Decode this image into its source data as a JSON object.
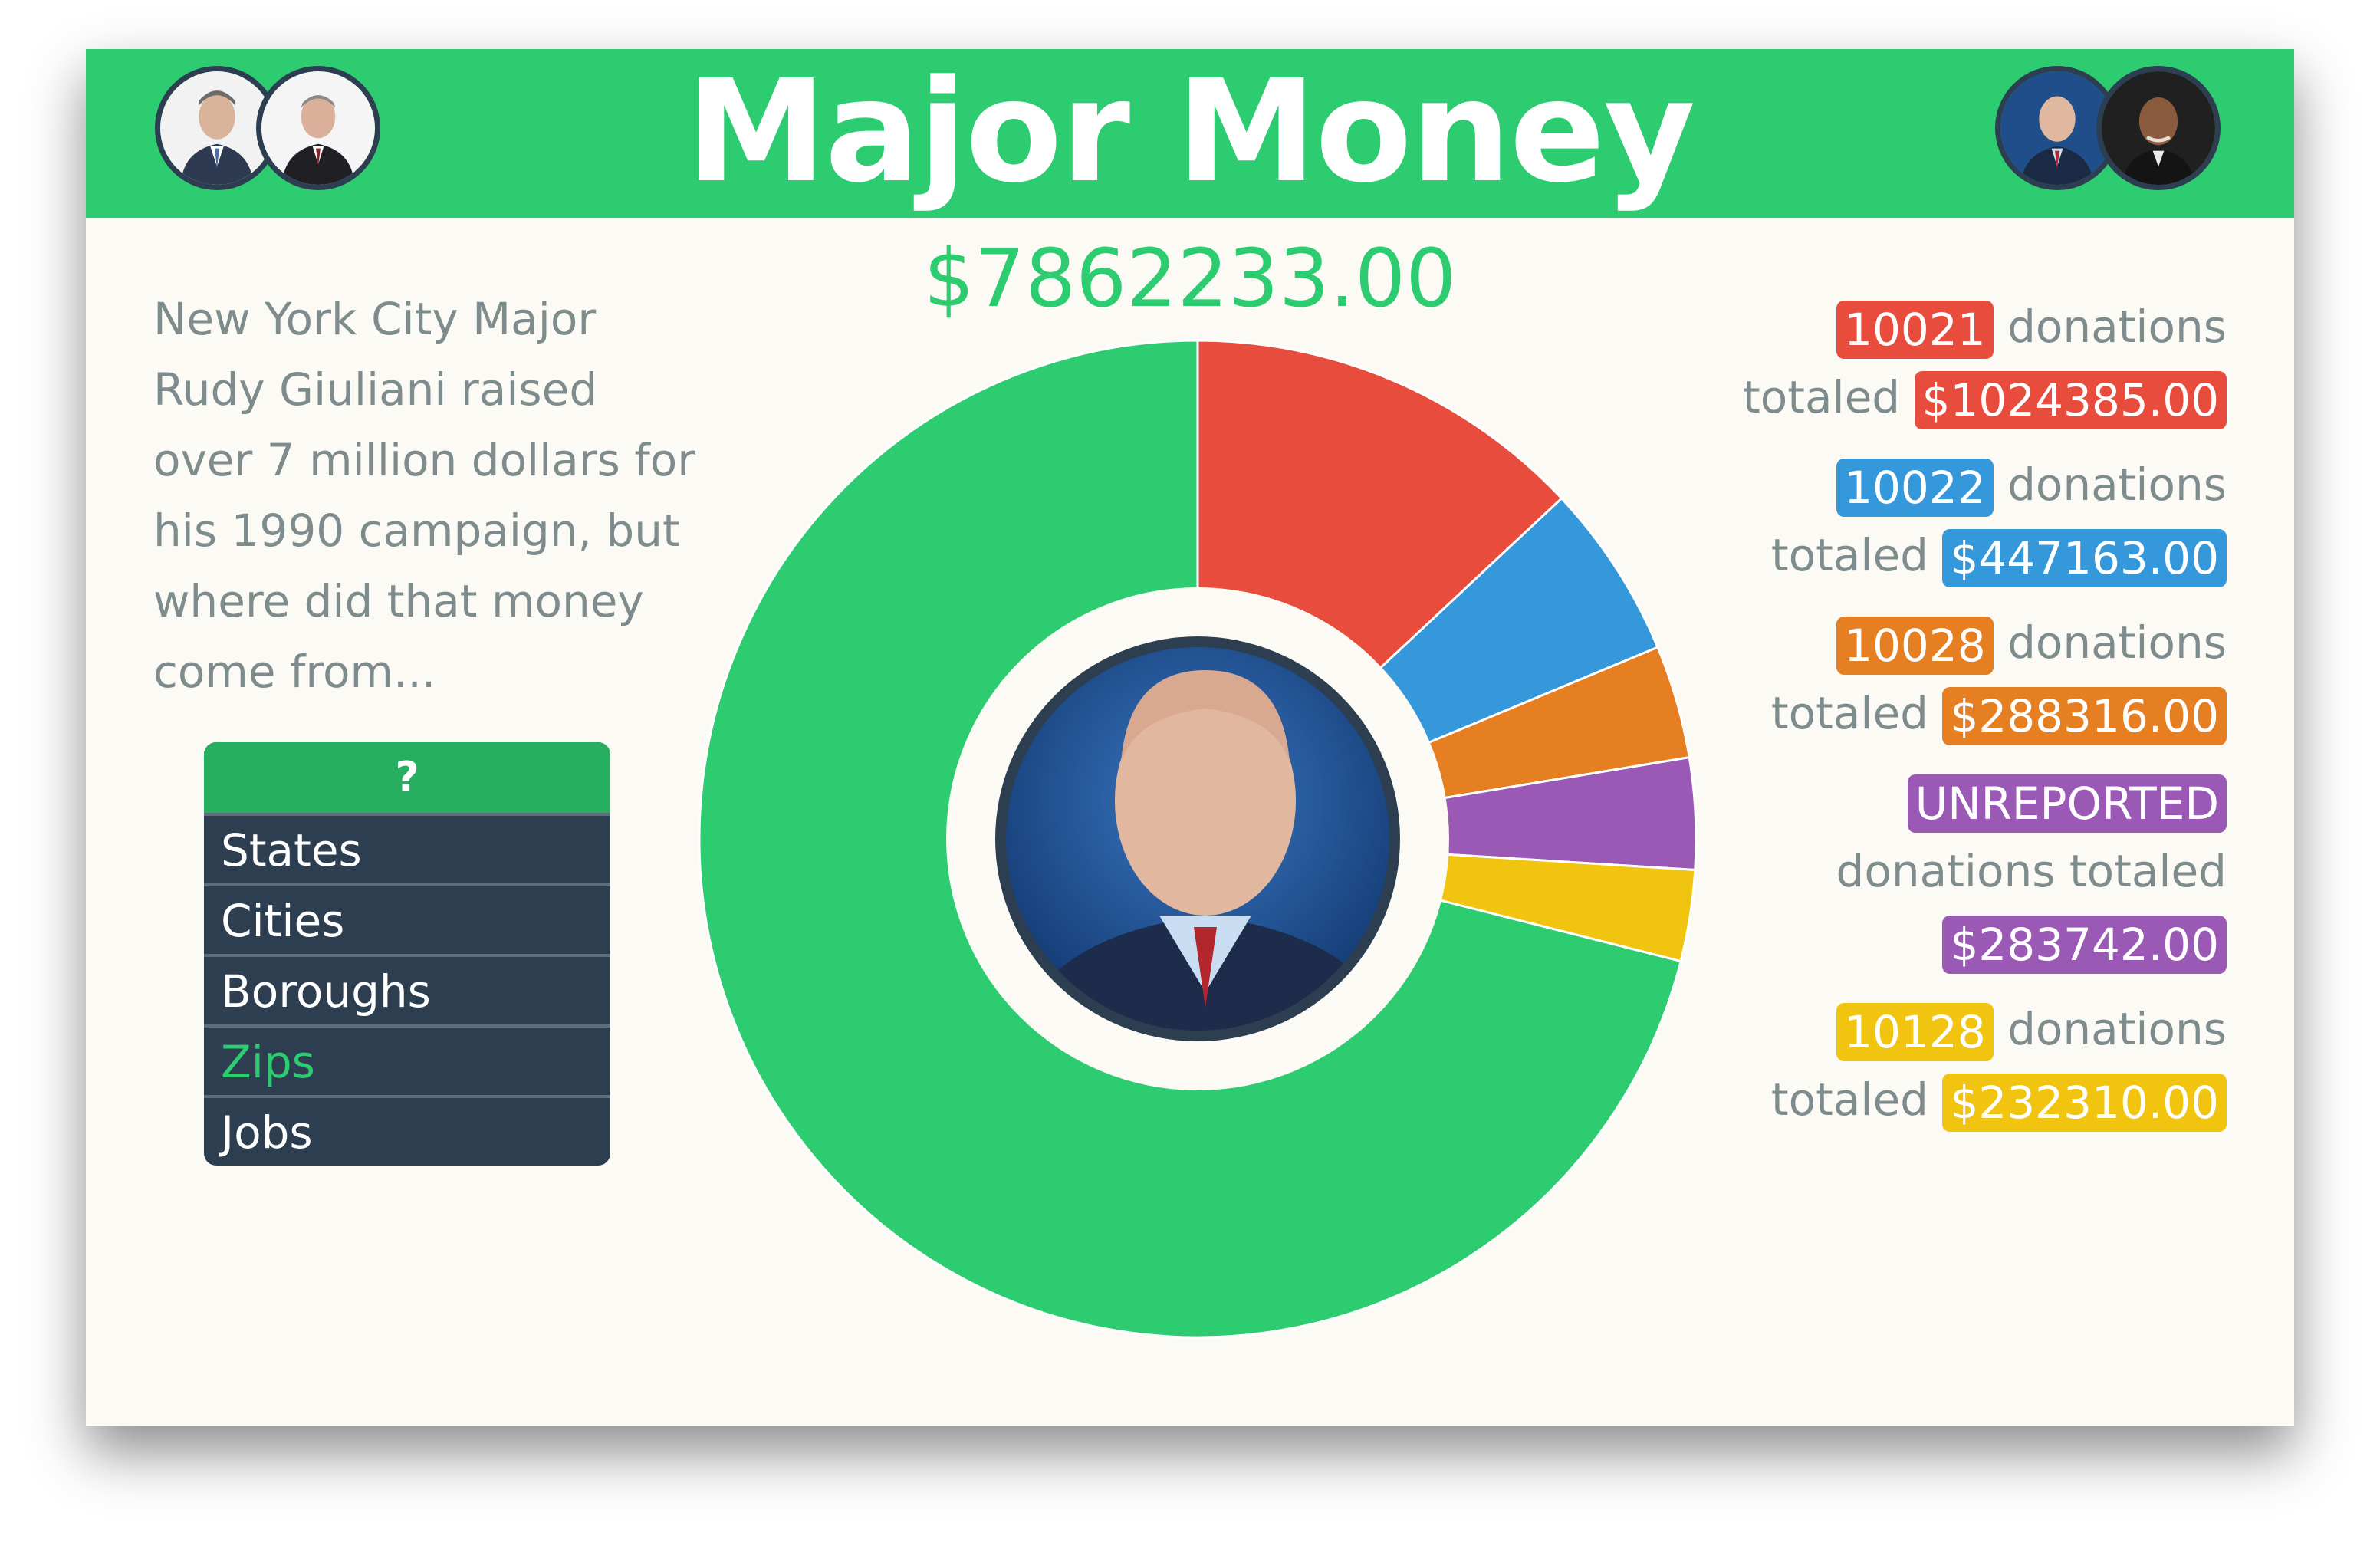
{
  "header": {
    "title": "Major Money",
    "avatars": [
      {
        "name": "avatar-left-1",
        "icon": "person-portrait-icon"
      },
      {
        "name": "avatar-left-2",
        "icon": "person-portrait-icon"
      },
      {
        "name": "avatar-right-1",
        "icon": "person-portrait-icon"
      },
      {
        "name": "avatar-right-2",
        "icon": "person-portrait-icon"
      }
    ]
  },
  "total": "$7862233.00",
  "description": "New York City Major Rudy Giuliani raised over 7 million dollars for his 1990 campaign, but where did that money come from...",
  "menu": {
    "header": "?",
    "items": [
      "States",
      "Cities",
      "Boroughs",
      "Zips",
      "Jobs"
    ],
    "active_index": 3
  },
  "colors": {
    "green": "#2ecc71",
    "red": "#e74c3c",
    "blue": "#3498db",
    "orange": "#e67e22",
    "purple": "#9b59b6",
    "yellow": "#f1c40f",
    "dark": "#2c3e50"
  },
  "legend": [
    {
      "label": "10021",
      "mid": "donations",
      "totaled": "totaled",
      "amount": "$1024385.00",
      "color": "#e74c3c"
    },
    {
      "label": "10022",
      "mid": "donations",
      "totaled": "totaled",
      "amount": "$447163.00",
      "color": "#3498db"
    },
    {
      "label": "10028",
      "mid": "donations",
      "totaled": "totaled",
      "amount": "$288316.00",
      "color": "#e67e22"
    },
    {
      "label": "UNREPORTED",
      "mid": "",
      "totaled": "donations totaled",
      "amount": "$283742.00",
      "color": "#9b59b6"
    },
    {
      "label": "10128",
      "mid": "donations",
      "totaled": "totaled",
      "amount": "$232310.00",
      "color": "#f1c40f"
    }
  ],
  "chart_data": {
    "type": "pie",
    "total": 7862233.0,
    "slices": [
      {
        "label": "10021",
        "value": 1024385.0,
        "color": "#e74c3c"
      },
      {
        "label": "10022",
        "value": 447163.0,
        "color": "#3498db"
      },
      {
        "label": "10028",
        "value": 288316.0,
        "color": "#e67e22"
      },
      {
        "label": "UNREPORTED",
        "value": 283742.0,
        "color": "#9b59b6"
      },
      {
        "label": "10128",
        "value": 232310.0,
        "color": "#f1c40f"
      },
      {
        "label": "",
        "value": 5586317.0,
        "color": "#2ecc71"
      }
    ]
  }
}
